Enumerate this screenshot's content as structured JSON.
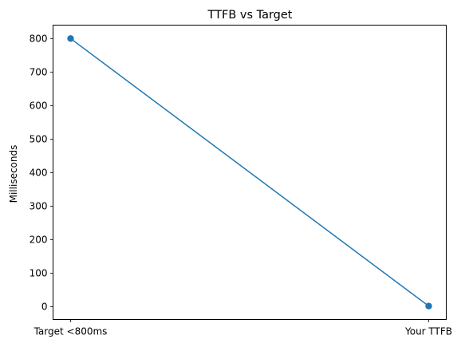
{
  "chart_data": {
    "type": "line",
    "title": "TTFB vs Target",
    "xlabel": "",
    "ylabel": "Milliseconds",
    "categories": [
      "Target <800ms",
      "Your TTFB"
    ],
    "series": [
      {
        "values": [
          800,
          2
        ],
        "color": "#1f77b4",
        "marker": "circle"
      }
    ],
    "ylim": [
      -38,
      840
    ],
    "yticks": [
      0,
      100,
      200,
      300,
      400,
      500,
      600,
      700,
      800
    ],
    "grid": false,
    "legend": "none"
  }
}
